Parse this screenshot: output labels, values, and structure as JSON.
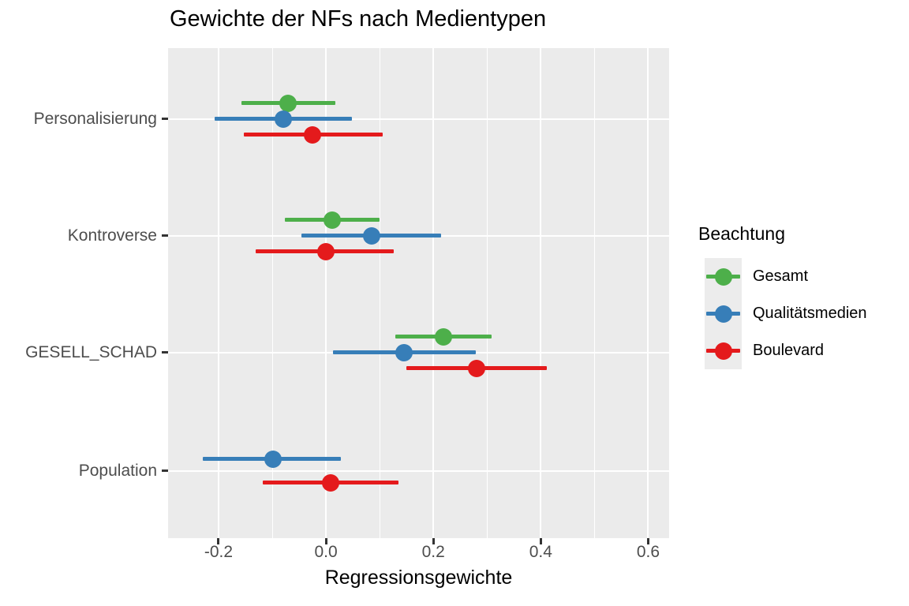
{
  "title": "Gewichte der NFs nach Medientypen",
  "chart_data": {
    "type": "pointrange",
    "title": "Gewichte der NFs nach Medientypen",
    "xlabel": "Regressionsgewichte",
    "ylabel": "",
    "legend_title": "Beachtung",
    "legend_position": "right",
    "grid": true,
    "panel_bg": "#EBEBEB",
    "grid_color": "#ffffff",
    "tick_label_color": "#4D4D4D",
    "categories": [
      "Personalisierung",
      "Kontroverse",
      "GESELL_SCHAD",
      "Population"
    ],
    "xlim": [
      -0.294,
      0.639
    ],
    "x_ticks": [
      {
        "v": -0.2,
        "label": "-0.2"
      },
      {
        "v": 0.0,
        "label": "0.0"
      },
      {
        "v": 0.2,
        "label": "0.2"
      },
      {
        "v": 0.4,
        "label": "0.4"
      },
      {
        "v": 0.6,
        "label": "0.6"
      }
    ],
    "x_minor_ticks": [
      -0.1,
      0.1,
      0.3,
      0.5
    ],
    "series": [
      {
        "name": "Gesamt",
        "color": "#4DAF4A",
        "points": [
          {
            "est": -0.071,
            "lo": -0.158,
            "hi": 0.018
          },
          {
            "est": 0.012,
            "lo": -0.077,
            "hi": 0.1
          },
          {
            "est": 0.219,
            "lo": 0.129,
            "hi": 0.308
          },
          null
        ]
      },
      {
        "name": "Qualitätsmedien",
        "color": "#377EB8",
        "points": [
          {
            "est": -0.08,
            "lo": -0.208,
            "hi": 0.049
          },
          {
            "est": 0.085,
            "lo": -0.045,
            "hi": 0.215
          },
          {
            "est": 0.146,
            "lo": 0.013,
            "hi": 0.279
          },
          {
            "est": -0.099,
            "lo": -0.229,
            "hi": 0.028
          }
        ]
      },
      {
        "name": "Boulevard",
        "color": "#E41A1C",
        "points": [
          {
            "est": -0.025,
            "lo": -0.153,
            "hi": 0.106
          },
          {
            "est": 0.0,
            "lo": -0.131,
            "hi": 0.126
          },
          {
            "est": 0.281,
            "lo": 0.15,
            "hi": 0.412
          },
          {
            "est": 0.008,
            "lo": -0.117,
            "hi": 0.135
          }
        ]
      }
    ]
  }
}
